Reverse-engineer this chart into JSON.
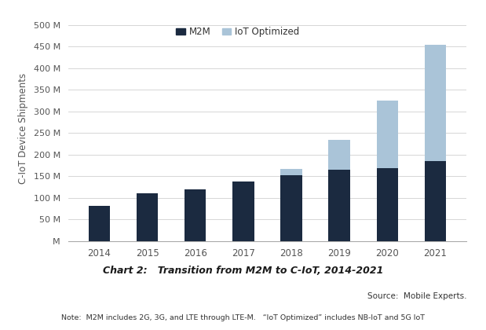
{
  "years": [
    "2014",
    "2015",
    "2016",
    "2017",
    "2018",
    "2019",
    "2020",
    "2021"
  ],
  "m2m": [
    82,
    110,
    120,
    138,
    152,
    165,
    168,
    185
  ],
  "iot": [
    0,
    0,
    0,
    0,
    14,
    70,
    158,
    270
  ],
  "m2m_color": "#1b2a40",
  "iot_color": "#aac4d8",
  "ylabel": "C-IoT Device Shipments",
  "yticks": [
    0,
    50,
    100,
    150,
    200,
    250,
    300,
    350,
    400,
    450,
    500
  ],
  "ytick_labels": [
    "M",
    "50 M",
    "100 M",
    "150 M",
    "200 M",
    "250 M",
    "300 M",
    "350 M",
    "400 M",
    "450 M",
    "500 M"
  ],
  "title": "Chart 2:   Transition from M2M to C-IoT, 2014-2021",
  "legend_m2m": "M2M",
  "legend_iot": "IoT Optimized",
  "source_text": "Source:  Mobile Experts.",
  "note_text": "Note:  M2M includes 2G, 3G, and LTE through LTE-M.   “IoT Optimized” includes NB-IoT and 5G IoT",
  "background_color": "#ffffff",
  "grid_color": "#d0d0d0",
  "ylabel_color": "#555555",
  "tick_color": "#555555"
}
